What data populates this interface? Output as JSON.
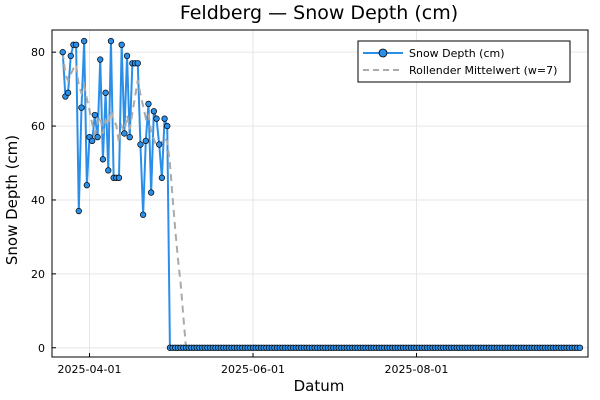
{
  "chart_data": {
    "type": "line",
    "title": "Feldberg — Snow Depth (cm)",
    "xlabel": "Datum",
    "ylabel": "Snow Depth (cm)",
    "x_start": "2025-03-22",
    "x_end": "2025-09-30",
    "xlim": [
      "2025-03-18",
      "2025-10-04"
    ],
    "ylim": [
      -2.5,
      86
    ],
    "x_ticks": [
      {
        "date": "2025-04-01",
        "label": "2025-04-01"
      },
      {
        "date": "2025-06-01",
        "label": "2025-06-01"
      },
      {
        "date": "2025-08-01",
        "label": "2025-08-01"
      }
    ],
    "y_ticks": [
      {
        "value": 0,
        "label": "0"
      },
      {
        "value": 20,
        "label": "20"
      },
      {
        "value": 40,
        "label": "40"
      },
      {
        "value": 60,
        "label": "60"
      },
      {
        "value": 80,
        "label": "80"
      }
    ],
    "grid": true,
    "legend_position": "top-right",
    "series": [
      {
        "name": "Snow Depth (cm)",
        "style": "line-with-markers",
        "color": "#2b8fe8",
        "nonzero_values": [
          80,
          68,
          69,
          79,
          82,
          82,
          37,
          65,
          83,
          44,
          57,
          56,
          63,
          57,
          78,
          51,
          69,
          48,
          83,
          46,
          46,
          46,
          82,
          58,
          79,
          57,
          77,
          77,
          77,
          55,
          36,
          56,
          66,
          42,
          64,
          62,
          55,
          46,
          62,
          60
        ],
        "trailing_zero_count": 154
      },
      {
        "name": "Rollender Mittelwert (w=7)",
        "style": "dashed",
        "color": "#aaaaaa",
        "window": 7
      }
    ]
  }
}
